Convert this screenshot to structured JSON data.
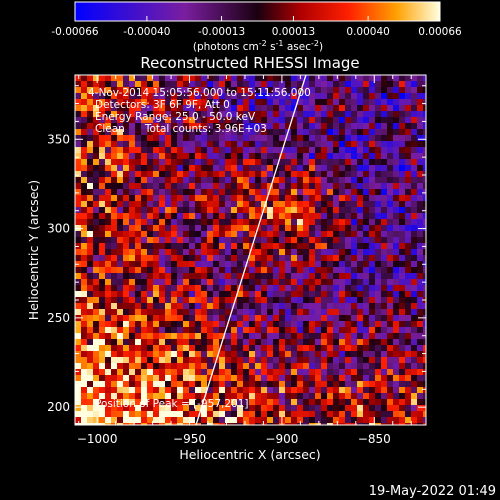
{
  "colorbar": {
    "ticks": [
      "-0.00066",
      "-0.00040",
      "-0.00013",
      "0.00013",
      "0.00040",
      "0.00066"
    ],
    "unit_main": "(photons cm",
    "unit_sup1": "-2",
    "unit_mid": " s",
    "unit_sup2": "-1",
    "unit_end": " asec",
    "unit_sup3": "-2",
    "unit_close": ")",
    "range": [
      -0.00066,
      0.00066
    ]
  },
  "chart_data": {
    "type": "heatmap",
    "title": "Reconstructed RHESSI Image",
    "xlabel": "Heliocentric X (arcsec)",
    "ylabel": "Heliocentric Y (arcsec)",
    "xlim": [
      -1012,
      -822
    ],
    "ylim": [
      190,
      386
    ],
    "x_ticks": [
      -1000,
      -950,
      -900,
      -850
    ],
    "x_tick_labels": [
      "−1000",
      "−950",
      "−900",
      "−850"
    ],
    "y_ticks": [
      200,
      250,
      300,
      350
    ],
    "y_tick_labels": [
      "200",
      "250",
      "300",
      "350"
    ],
    "annotations": [
      "4-Nov-2014 15:05:56.000 to 15:11:56.000",
      "Detectors: 3F 6F 9F, Att 0",
      "Energy Range: 25.0 - 50.0 keV",
      "Clean      Total counts: 3.96E+03"
    ],
    "position_label": "Position of Peak = [-957,201]",
    "limb_line": {
      "x": [
        -946.5,
        -887
      ],
      "y": [
        190,
        386
      ]
    }
  },
  "timestamp": "19-May-2022 01:49"
}
